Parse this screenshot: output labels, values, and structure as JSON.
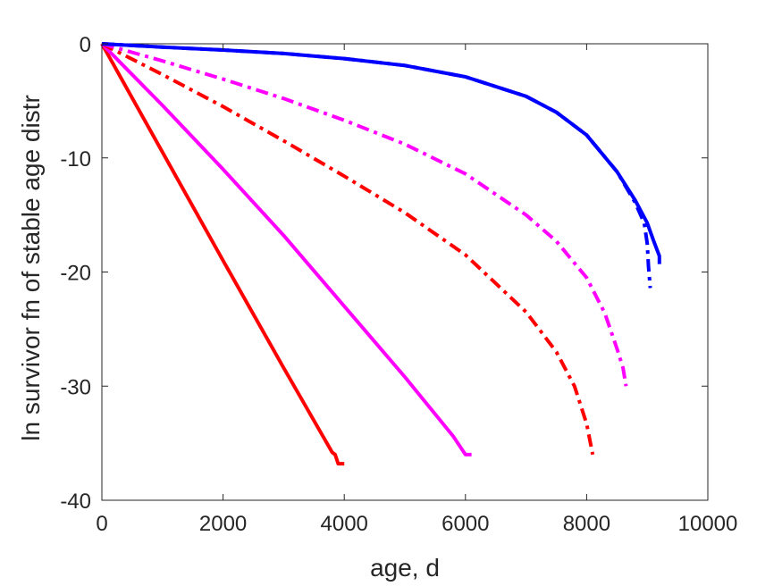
{
  "chart_data": {
    "type": "line",
    "title": "",
    "xlabel": "age, d",
    "ylabel": "ln survivor fn of stable age distr",
    "xlim": [
      0,
      10000
    ],
    "ylim": [
      -40,
      0
    ],
    "xticks": [
      0,
      2000,
      4000,
      6000,
      8000,
      10000
    ],
    "yticks": [
      0,
      -10,
      -20,
      -30,
      -40
    ],
    "xtick_labels": [
      "0",
      "2000",
      "4000",
      "6000",
      "8000",
      "10000"
    ],
    "ytick_labels": [
      "0",
      "-10",
      "-20",
      "-30",
      "-40"
    ],
    "grid": false,
    "series": [
      {
        "color": "#ff0000",
        "style": "solid",
        "x": [
          0,
          1000,
          2000,
          3000,
          3800,
          3850,
          3900,
          4000
        ],
        "y": [
          0,
          -9.5,
          -19,
          -28.4,
          -35.8,
          -36,
          -36.8,
          -36.8
        ]
      },
      {
        "color": "#ff00ff",
        "style": "solid",
        "x": [
          0,
          1000,
          2000,
          3000,
          4000,
          5000,
          5800,
          5950,
          6000,
          6100
        ],
        "y": [
          0,
          -5.4,
          -11,
          -16.8,
          -23,
          -29.2,
          -34.4,
          -35.6,
          -36,
          -36
        ]
      },
      {
        "color": "#ff0000",
        "style": "dashdot",
        "x": [
          0,
          1000,
          2000,
          3000,
          4000,
          5000,
          6000,
          7000,
          7500,
          7800,
          8000,
          8100
        ],
        "y": [
          0,
          -2.7,
          -5.5,
          -8.5,
          -11.6,
          -14.8,
          -18.5,
          -23.5,
          -27,
          -30,
          -33.3,
          -36
        ]
      },
      {
        "color": "#ff00ff",
        "style": "dashdot",
        "x": [
          0,
          1000,
          2000,
          3000,
          4000,
          5000,
          6000,
          7000,
          7500,
          8000,
          8300,
          8500,
          8600,
          8650
        ],
        "y": [
          0,
          -1.5,
          -3.1,
          -4.8,
          -6.7,
          -8.8,
          -11.4,
          -15,
          -17.3,
          -20.5,
          -23.6,
          -26.7,
          -28.4,
          -30
        ]
      },
      {
        "color": "#0000ff",
        "style": "solid",
        "x": [
          0,
          1000,
          2000,
          3000,
          4000,
          5000,
          6000,
          7000,
          7500,
          8000,
          8500,
          8800,
          9000,
          9100,
          9200,
          9200
        ],
        "y": [
          0,
          -0.3,
          -0.55,
          -0.85,
          -1.3,
          -1.9,
          -2.9,
          -4.6,
          -6,
          -8,
          -11.2,
          -13.7,
          -15.7,
          -17.2,
          -18.6,
          -19.3
        ]
      },
      {
        "color": "#0000ff",
        "style": "dashdot",
        "x": [
          0,
          1000,
          2000,
          3000,
          4000,
          5000,
          6000,
          7000,
          7500,
          8000,
          8500,
          8800,
          8950,
          9000,
          9020,
          9050
        ],
        "y": [
          0,
          -0.3,
          -0.55,
          -0.85,
          -1.3,
          -1.9,
          -2.9,
          -4.6,
          -6,
          -8,
          -11.2,
          -13.9,
          -15.7,
          -17.5,
          -19.5,
          -21.4
        ]
      }
    ]
  }
}
